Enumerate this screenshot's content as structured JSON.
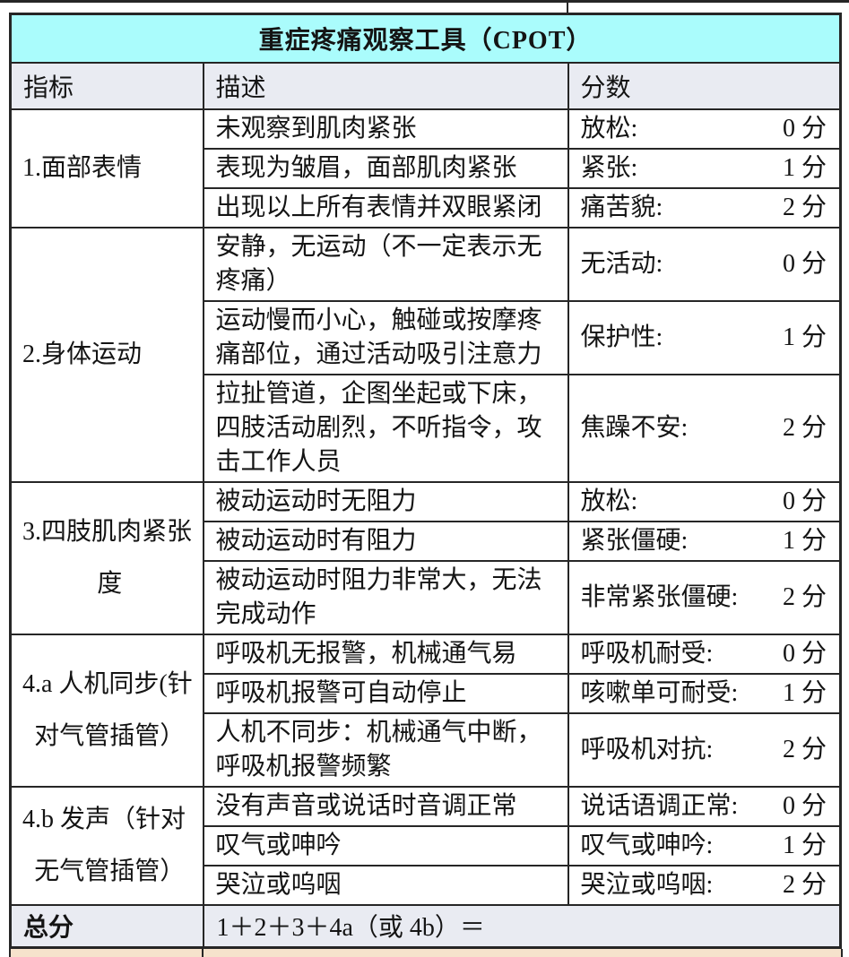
{
  "title": "重症疼痛观察工具（CPOT）",
  "columns": [
    "指标",
    "描述",
    "分数"
  ],
  "groups": [
    {
      "indicator_lines": [
        "1.面部表情"
      ],
      "rows": [
        {
          "desc": "未观察到肌肉紧张",
          "label": "放松:",
          "score": "0 分"
        },
        {
          "desc": "表现为皱眉，面部肌肉紧张",
          "label": "紧张:",
          "score": "1 分"
        },
        {
          "desc": "出现以上所有表情并双眼紧闭",
          "label": "痛苦貌:",
          "score": "2 分"
        }
      ]
    },
    {
      "indicator_lines": [
        "2.身体运动"
      ],
      "rows": [
        {
          "desc": "安静，无运动（不一定表示无疼痛）",
          "label": "无活动:",
          "score": "0 分"
        },
        {
          "desc": "运动慢而小心，触碰或按摩疼痛部位，通过活动吸引注意力",
          "label": "保护性:",
          "score": "1 分"
        },
        {
          "desc": "拉扯管道，企图坐起或下床，四肢活动剧烈，不听指令，攻击工作人员",
          "label": "焦躁不安:",
          "score": "2 分"
        }
      ]
    },
    {
      "indicator_lines": [
        "3.四肢肌肉紧张",
        "度"
      ],
      "rows": [
        {
          "desc": "被动运动时无阻力",
          "label": "放松:",
          "score": "0 分"
        },
        {
          "desc": "被动运动时有阻力",
          "label": "紧张僵硬:",
          "score": "1 分"
        },
        {
          "desc": "被动运动时阻力非常大，无法完成动作",
          "label": "非常紧张僵硬:",
          "score": "2 分"
        }
      ]
    },
    {
      "indicator_lines": [
        "4.a 人机同步(针",
        "对气管插管）"
      ],
      "rows": [
        {
          "desc": "呼吸机无报警，机械通气易",
          "label": "呼吸机耐受:",
          "score": "0 分"
        },
        {
          "desc": "呼吸机报警可自动停止",
          "label": "咳嗽单可耐受:",
          "score": "1 分"
        },
        {
          "desc": "人机不同步：机械通气中断，呼吸机报警频繁",
          "label": "呼吸机对抗:",
          "score": "2 分"
        }
      ]
    },
    {
      "indicator_lines": [
        "4.b 发声（针对",
        "无气管插管）"
      ],
      "rows": [
        {
          "desc": "没有声音或说话时音调正常",
          "label": "说话语调正常:",
          "score": "0 分"
        },
        {
          "desc": "叹气或呻吟",
          "label": "叹气或呻吟:",
          "score": "1 分"
        },
        {
          "desc": "哭泣或呜咽",
          "label": "哭泣或呜咽:",
          "score": "2 分"
        }
      ]
    }
  ],
  "total": {
    "label": "总分",
    "formula": "1＋2＋3＋4a（或 4b）＝"
  },
  "colors": {
    "title_bg": "#aafcfc",
    "header_bg": "#e9ebf2",
    "border": "#262626",
    "next_section_strip": "#f6e2cc",
    "text": "#141414"
  }
}
